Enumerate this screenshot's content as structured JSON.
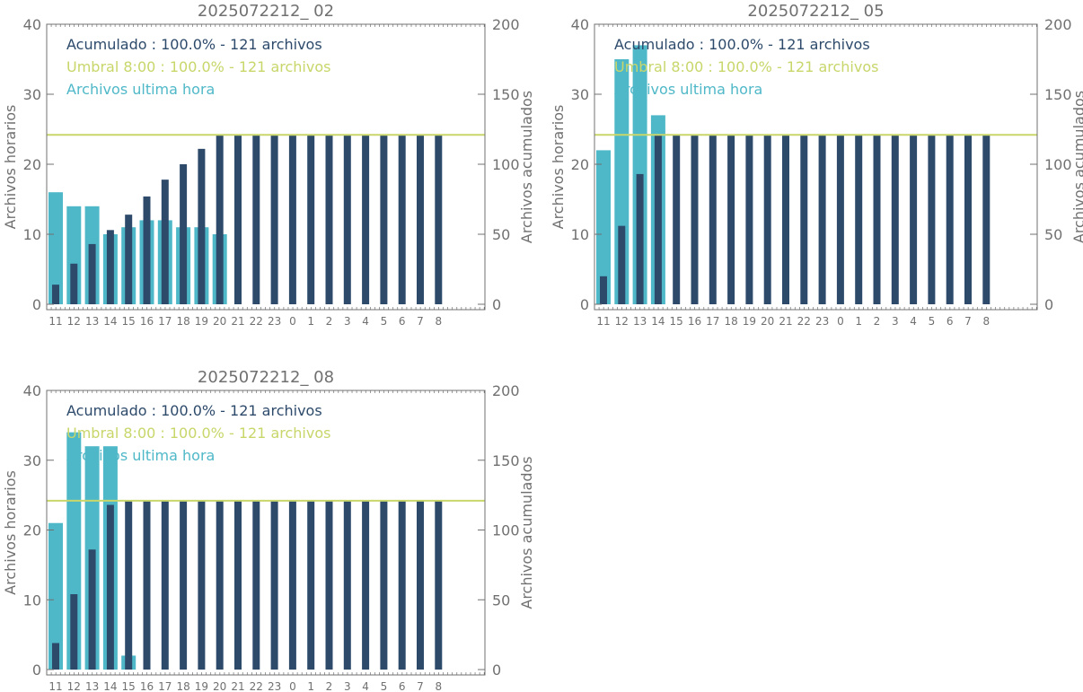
{
  "colors": {
    "hourly": "#4fb8c8",
    "cumulative": "#2d4a6b",
    "threshold": "#c8d66a",
    "axis": "#707070",
    "text": "#707070"
  },
  "chart_data": [
    {
      "type": "bar",
      "title": "2025072212_ 02",
      "ylabel": "Archivos horarios",
      "y2label": "Archivos acumulados",
      "ylim": [
        0,
        40
      ],
      "y2lim": [
        0,
        200
      ],
      "yticks": [
        "0",
        "10",
        "20",
        "30",
        "40"
      ],
      "y2ticks": [
        "0",
        "50",
        "100",
        "150",
        "200"
      ],
      "categories": [
        "11",
        "12",
        "13",
        "14",
        "15",
        "16",
        "17",
        "18",
        "19",
        "20",
        "21",
        "22",
        "23",
        "0",
        "1",
        "2",
        "3",
        "4",
        "5",
        "6",
        "7",
        "8"
      ],
      "legend": [
        "Acumulado : 100.0% - 121 archivos",
        "Umbral 8:00 : 100.0% - 121 archivos",
        "Archivos ultima hora"
      ],
      "series": [
        {
          "name": "Archivos ultima hora",
          "axis": "left",
          "values": [
            16,
            14,
            14,
            10,
            11,
            12,
            12,
            11,
            11,
            10,
            0,
            0,
            0,
            0,
            0,
            0,
            0,
            0,
            0,
            0,
            0,
            0
          ]
        },
        {
          "name": "Acumulado",
          "axis": "right",
          "values": [
            14,
            29,
            43,
            53,
            64,
            77,
            89,
            100,
            111,
            121,
            121,
            121,
            121,
            121,
            121,
            121,
            121,
            121,
            121,
            121,
            121,
            121
          ]
        }
      ],
      "threshold": 121
    },
    {
      "type": "bar",
      "title": "2025072212_ 05",
      "ylabel": "Archivos horarios",
      "y2label": "Archivos acumulados",
      "ylim": [
        0,
        40
      ],
      "y2lim": [
        0,
        200
      ],
      "yticks": [
        "0",
        "10",
        "20",
        "30",
        "40"
      ],
      "y2ticks": [
        "0",
        "50",
        "100",
        "150",
        "200"
      ],
      "categories": [
        "11",
        "12",
        "13",
        "14",
        "15",
        "16",
        "17",
        "18",
        "19",
        "20",
        "21",
        "22",
        "23",
        "0",
        "1",
        "2",
        "3",
        "4",
        "5",
        "6",
        "7",
        "8"
      ],
      "legend": [
        "Acumulado : 100.0% - 121 archivos",
        "Umbral 8:00 : 100.0% - 121 archivos",
        "Archivos ultima hora"
      ],
      "series": [
        {
          "name": "Archivos ultima hora",
          "axis": "left",
          "values": [
            22,
            35,
            37,
            27,
            0,
            0,
            0,
            0,
            0,
            0,
            0,
            0,
            0,
            0,
            0,
            0,
            0,
            0,
            0,
            0,
            0,
            0
          ]
        },
        {
          "name": "Acumulado",
          "axis": "right",
          "values": [
            20,
            56,
            93,
            121,
            121,
            121,
            121,
            121,
            121,
            121,
            121,
            121,
            121,
            121,
            121,
            121,
            121,
            121,
            121,
            121,
            121,
            121
          ]
        }
      ],
      "threshold": 121
    },
    {
      "type": "bar",
      "title": "2025072212_ 08",
      "ylabel": "Archivos horarios",
      "y2label": "Archivos acumulados",
      "ylim": [
        0,
        40
      ],
      "y2lim": [
        0,
        200
      ],
      "yticks": [
        "0",
        "10",
        "20",
        "30",
        "40"
      ],
      "y2ticks": [
        "0",
        "50",
        "100",
        "150",
        "200"
      ],
      "categories": [
        "11",
        "12",
        "13",
        "14",
        "15",
        "16",
        "17",
        "18",
        "19",
        "20",
        "21",
        "22",
        "23",
        "0",
        "1",
        "2",
        "3",
        "4",
        "5",
        "6",
        "7",
        "8"
      ],
      "legend": [
        "Acumulado : 100.0% - 121 archivos",
        "Umbral 8:00 : 100.0% - 121 archivos",
        "Archivos ultima hora"
      ],
      "series": [
        {
          "name": "Archivos ultima hora",
          "axis": "left",
          "values": [
            21,
            34,
            32,
            32,
            2,
            0,
            0,
            0,
            0,
            0,
            0,
            0,
            0,
            0,
            0,
            0,
            0,
            0,
            0,
            0,
            0,
            0
          ]
        },
        {
          "name": "Acumulado",
          "axis": "right",
          "values": [
            19,
            54,
            86,
            118,
            121,
            121,
            121,
            121,
            121,
            121,
            121,
            121,
            121,
            121,
            121,
            121,
            121,
            121,
            121,
            121,
            121,
            121
          ]
        }
      ],
      "threshold": 121
    }
  ]
}
